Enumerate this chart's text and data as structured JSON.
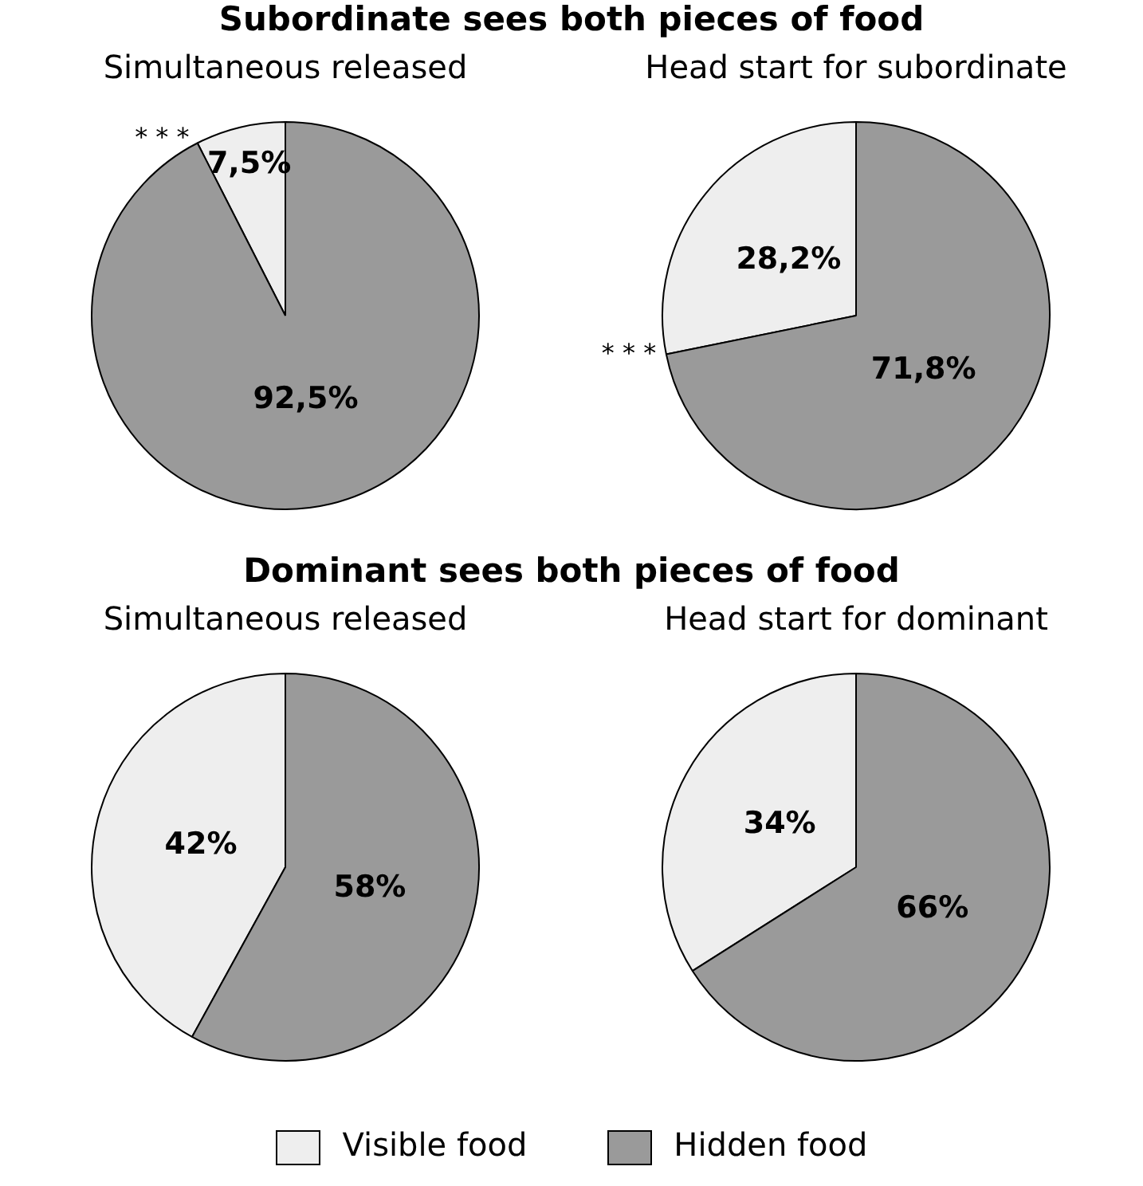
{
  "chart_data": [
    {
      "type": "pie",
      "title": "Subordinate sees both pieces of food",
      "subtitle": "Simultaneous released",
      "categories": [
        "Visible food",
        "Hidden food"
      ],
      "values": [
        7.5,
        92.5
      ],
      "colors": [
        "#eeeeee",
        "#9a9a9a"
      ],
      "value_labels": [
        "7,5%",
        "92,5%"
      ],
      "annotations": [
        "* * *"
      ],
      "legend": "bottom"
    },
    {
      "type": "pie",
      "subtitle": "Head start for subordinate",
      "categories": [
        null,
        null
      ],
      "values": [
        28.2,
        71.8
      ],
      "colors": [
        "#eeeeee",
        "#9a9a9a"
      ],
      "value_labels": [
        "28,2%",
        "71,8%"
      ],
      "annotations": [
        "* * *"
      ]
    },
    {
      "type": "pie",
      "title": "Dominant sees both pieces of food",
      "subtitle": "Simultaneous released",
      "categories": [
        null,
        null
      ],
      "values": [
        42,
        58
      ],
      "colors": [
        "#eeeeee",
        "#9a9a9a"
      ],
      "value_labels": [
        "42%",
        "58%"
      ]
    },
    {
      "type": "pie",
      "subtitle": "Head start for dominant",
      "categories": [
        null,
        null
      ],
      "values": [
        34,
        66
      ],
      "colors": [
        "#eeeeee",
        "#9a9a9a"
      ],
      "value_labels": [
        "34%",
        "66%"
      ]
    }
  ]
}
